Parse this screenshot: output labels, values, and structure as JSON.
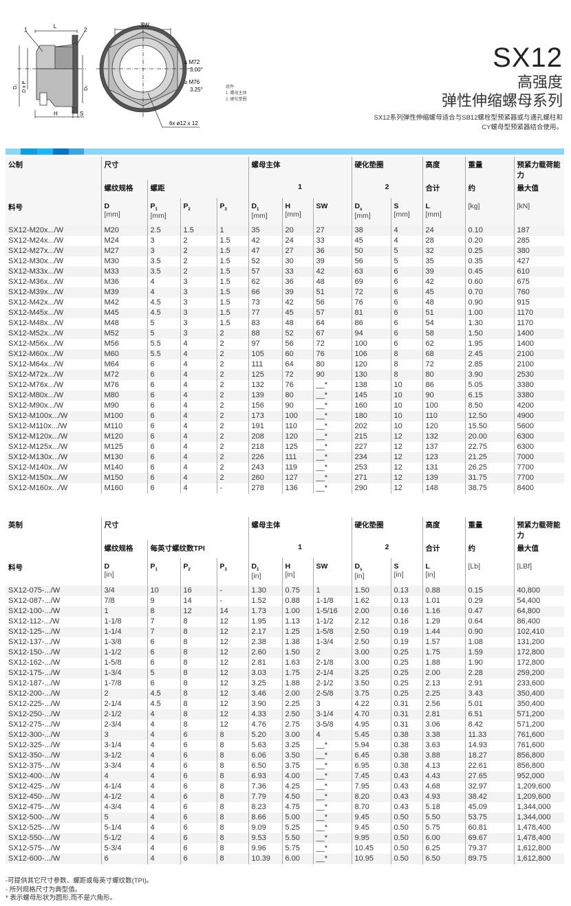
{
  "header": {
    "model": "SX12",
    "subtitle1": "高强度",
    "subtitle2": "弹性伸缩螺母系列",
    "description_line1": "SX12系列弹性伸缩螺母适合与SB12螺栓型预紧器或与通孔螺柱和",
    "description_line2": "CY螺母型预紧器结合使用。"
  },
  "drawing": {
    "label_L": "L",
    "label_1": "1",
    "label_2": "2",
    "label_SW": "SW",
    "label_D1": "D₁",
    "label_DxP": "D x P",
    "label_Ds": "Dₛ",
    "label_H": "H",
    "label_S": "S",
    "angle1_range": "≤ M72",
    "angle1": "3.00°",
    "angle2_range": "≥ M76",
    "angle2": "3.25°",
    "holes": "6x  ø12 x 12",
    "legend_title": "组件:",
    "legend_1": "1. 螺母主体",
    "legend_2": "2. 硬化垫圈"
  },
  "colors": {
    "strip": "#8dd6f5",
    "seg1": "#0aa0e0",
    "seg2": "#13bbee",
    "seg3": "#0077c0",
    "seg4": "#3aa6dc"
  },
  "metric": {
    "h_system": "公制",
    "h_size": "尺寸",
    "h_body": "螺母主体",
    "h_washer": "硬化垫圈",
    "h_height": "高度",
    "h_weight": "重量",
    "h_load": "预紧力载荷能力",
    "h_thread": "螺纹规格",
    "h_pitch": "螺距",
    "h_body_no": "1",
    "h_washer_no": "2",
    "h_total": "合计",
    "h_approx": "约",
    "h_max": "最大值",
    "h_part": "料号",
    "units": {
      "D": "[mm]",
      "P1": "[mm]",
      "D1": "[mm]",
      "H": "[mm]",
      "Ds": "[mm]",
      "S": "[mm]",
      "L": "[mm]",
      "weight": "[kg]",
      "load": "[kN]"
    },
    "rows": [
      [
        "SX12-M20x.../W",
        "M20",
        "2.5",
        "1.5",
        "1",
        "35",
        "20",
        "27",
        "38",
        "4",
        "24",
        "0.10",
        "187"
      ],
      [
        "SX12-M24x.../W",
        "M24",
        "3",
        "2",
        "1.5",
        "42",
        "24",
        "33",
        "45",
        "4",
        "28",
        "0.20",
        "285"
      ],
      [
        "SX12-M27x.../W",
        "M27",
        "3",
        "2",
        "1.5",
        "47",
        "27",
        "36",
        "50",
        "5",
        "32",
        "0.25",
        "380"
      ],
      [
        "SX12-M30x.../W",
        "M30",
        "3.5",
        "2",
        "1.5",
        "52",
        "30",
        "39",
        "56",
        "5",
        "35",
        "0.35",
        "427"
      ],
      [
        "SX12-M33x.../W",
        "M33",
        "3.5",
        "2",
        "1.5",
        "57",
        "33",
        "42",
        "63",
        "6",
        "39",
        "0.45",
        "610"
      ],
      [
        "SX12-M36x.../W",
        "M36",
        "4",
        "3",
        "1.5",
        "62",
        "36",
        "48",
        "69",
        "6",
        "42",
        "0.60",
        "675"
      ],
      [
        "SX12-M39x.../W",
        "M39",
        "4",
        "3",
        "1.5",
        "66",
        "39",
        "51",
        "72",
        "6",
        "45",
        "0.70",
        "760"
      ],
      [
        "SX12-M42x.../W",
        "M42",
        "4.5",
        "3",
        "1.5",
        "73",
        "42",
        "56",
        "76",
        "6",
        "48",
        "0.90",
        "915"
      ],
      [
        "SX12-M45x.../W",
        "M45",
        "4.5",
        "3",
        "1.5",
        "77",
        "45",
        "57",
        "81",
        "6",
        "51",
        "1.00",
        "1170"
      ],
      [
        "SX12-M48x.../W",
        "M48",
        "5",
        "3",
        "1.5",
        "83",
        "48",
        "64",
        "86",
        "6",
        "54",
        "1.30",
        "1170"
      ],
      [
        "SX12-M52x.../W",
        "M52",
        "5",
        "3",
        "2",
        "88",
        "52",
        "67",
        "94",
        "6",
        "58",
        "1.50",
        "1400"
      ],
      [
        "SX12-M56x.../W",
        "M56",
        "5.5",
        "4",
        "2",
        "97",
        "56",
        "72",
        "100",
        "6",
        "62",
        "1.95",
        "1400"
      ],
      [
        "SX12-M60x.../W",
        "M60",
        "5.5",
        "4",
        "2",
        "105",
        "60",
        "76",
        "106",
        "8",
        "68",
        "2.45",
        "2100"
      ],
      [
        "SX12-M64x.../W",
        "M64",
        "6",
        "4",
        "2",
        "111",
        "64",
        "80",
        "120",
        "8",
        "72",
        "2.85",
        "2100"
      ],
      [
        "SX12-M72x.../W",
        "M72",
        "6",
        "4",
        "2",
        "125",
        "72",
        "90",
        "130",
        "8",
        "80",
        "3.90",
        "2530"
      ],
      [
        "SX12-M76x.../W",
        "M76",
        "6",
        "4",
        "2",
        "132",
        "76",
        "__*",
        "138",
        "10",
        "86",
        "5.05",
        "3380"
      ],
      [
        "SX12-M80x.../W",
        "M80",
        "6",
        "4",
        "2",
        "139",
        "80",
        "__*",
        "145",
        "10",
        "90",
        "6.15",
        "3380"
      ],
      [
        "SX12-M90x.../W",
        "M90",
        "6",
        "4",
        "2",
        "156",
        "90",
        "__*",
        "160",
        "10",
        "100",
        "8.50",
        "4200"
      ],
      [
        "SX12-M100x.../W",
        "M100",
        "6",
        "4",
        "2",
        "173",
        "100",
        "__*",
        "180",
        "10",
        "110",
        "12.50",
        "4900"
      ],
      [
        "SX12-M110x.../W",
        "M110",
        "6",
        "4",
        "2",
        "191",
        "110",
        "__*",
        "202",
        "10",
        "120",
        "15.50",
        "5600"
      ],
      [
        "SX12-M120x.../W",
        "M120",
        "6",
        "4",
        "2",
        "208",
        "120",
        "__*",
        "215",
        "12",
        "132",
        "20.00",
        "6300"
      ],
      [
        "SX12-M125x.../W",
        "M125",
        "6",
        "4",
        "2",
        "218",
        "125",
        "__*",
        "227",
        "12",
        "137",
        "22.75",
        "6300"
      ],
      [
        "SX12-M130x.../W",
        "M130",
        "6",
        "4",
        "2",
        "226",
        "111",
        "__*",
        "234",
        "12",
        "123",
        "21.25",
        "7000"
      ],
      [
        "SX12-M140x.../W",
        "M140",
        "6",
        "4",
        "2",
        "243",
        "119",
        "__*",
        "253",
        "12",
        "131",
        "26.25",
        "7700"
      ],
      [
        "SX12-M150x.../W",
        "M150",
        "6",
        "4",
        "2",
        "260",
        "127",
        "__*",
        "271",
        "12",
        "139",
        "31.75",
        "7700"
      ],
      [
        "SX12-M160x.../W",
        "M160",
        "6",
        "4",
        "-",
        "278",
        "136",
        "__*",
        "290",
        "12",
        "148",
        "38.75",
        "8400"
      ]
    ]
  },
  "imperial": {
    "h_system": "英制",
    "h_size": "尺寸",
    "h_body": "螺母主体",
    "h_washer": "硬化垫圈",
    "h_height": "高度",
    "h_weight": "重量",
    "h_load": "预紧力载荷能力",
    "h_thread": "螺纹规格",
    "h_pitch": "每英寸螺纹数TPI",
    "h_body_no": "1",
    "h_washer_no": "2",
    "h_total": "合计",
    "h_approx": "约",
    "h_max": "最大值",
    "h_part": "料号",
    "units": {
      "D": "[in]",
      "P1": "",
      "D1": "[in]",
      "H": "[in]",
      "Ds": "[in]",
      "S": "[in]",
      "L": "[in]",
      "weight": "[Lb]",
      "load": "[LBf]"
    },
    "rows": [
      [
        "SX12-075-.../W",
        "3/4",
        "10",
        "16",
        "-",
        "1.30",
        "0.75",
        "1",
        "1.50",
        "0.13",
        "0.88",
        "0.15",
        "40,800"
      ],
      [
        "SX12-087-.../W",
        "7/8",
        "9",
        "14",
        "-",
        "1.52",
        "0.88",
        "1-1/8",
        "1.62",
        "0.13",
        "1.01",
        "0.29",
        "54,400"
      ],
      [
        "SX12-100-.../W",
        "1",
        "8",
        "12",
        "14",
        "1.73",
        "1.00",
        "1-5/16",
        "2.00",
        "0.16",
        "1.16",
        "0.47",
        "64,800"
      ],
      [
        "SX12-112-.../W",
        "1-1/8",
        "7",
        "8",
        "12",
        "1.95",
        "1.13",
        "1-1/2",
        "2.12",
        "0.16",
        "1.29",
        "0.64",
        "86,400"
      ],
      [
        "SX12-125-.../W",
        "1-1/4",
        "7",
        "8",
        "12",
        "2.17",
        "1.25",
        "1-5/8",
        "2.50",
        "0.19",
        "1.44",
        "0.90",
        "102,410"
      ],
      [
        "SX12-137-.../W",
        "1-3/8",
        "6",
        "8",
        "12",
        "2.38",
        "1.38",
        "1-3/4",
        "2.50",
        "0.19",
        "1.57",
        "1.08",
        "131,200"
      ],
      [
        "SX12-150-.../W",
        "1-1/2",
        "6",
        "8",
        "12",
        "2.60",
        "1.50",
        "2",
        "3.00",
        "0.25",
        "1.75",
        "1.59",
        "172,800"
      ],
      [
        "SX12-162-.../W",
        "1-5/8",
        "6",
        "8",
        "12",
        "2.81",
        "1.63",
        "2-1/8",
        "3.00",
        "0.25",
        "1.88",
        "1.90",
        "172,800"
      ],
      [
        "SX12-175-.../W",
        "1-3/4",
        "5",
        "8",
        "12",
        "3.03",
        "1.75",
        "2-1/4",
        "3.25",
        "0.25",
        "2.00",
        "2.28",
        "259,200"
      ],
      [
        "SX12-187-.../W",
        "1-7/8",
        "6",
        "8",
        "12",
        "3.25",
        "1.88",
        "2-1/2",
        "3.50",
        "0.25",
        "2.13",
        "2.91",
        "233,600"
      ],
      [
        "SX12-200-.../W",
        "2",
        "4.5",
        "8",
        "12",
        "3.46",
        "2.00",
        "2-5/8",
        "3.75",
        "0.25",
        "2.25",
        "3.43",
        "350,400"
      ],
      [
        "SX12-225-.../W",
        "2-1/4",
        "4.5",
        "8",
        "12",
        "3.90",
        "2.25",
        "3",
        "4.22",
        "0.31",
        "2.56",
        "5.01",
        "350,400"
      ],
      [
        "SX12-250-.../W",
        "2-1/2",
        "4",
        "8",
        "12",
        "4.33",
        "2.50",
        "3-1/4",
        "4.70",
        "0.31",
        "2.81",
        "6.51",
        "571,200"
      ],
      [
        "SX12-275-.../W",
        "2-3/4",
        "4",
        "8",
        "12",
        "4.76",
        "2.75",
        "3-5/8",
        "4.95",
        "0.31",
        "3.06",
        "8.42",
        "571,200"
      ],
      [
        "SX12-300-.../W",
        "3",
        "4",
        "6",
        "8",
        "5.20",
        "3.00",
        "4",
        "5.45",
        "0.38",
        "3.38",
        "11.33",
        "761,600"
      ],
      [
        "SX12-325-.../W",
        "3-1/4",
        "4",
        "6",
        "8",
        "5.63",
        "3.25",
        "__*",
        "5.94",
        "0.38",
        "3.63",
        "14.93",
        "761,600"
      ],
      [
        "SX12-350-.../W",
        "3-1/2",
        "4",
        "6",
        "8",
        "6.06",
        "3.50",
        "__*",
        "6.45",
        "0.38",
        "3.88",
        "18.27",
        "856,800"
      ],
      [
        "SX12-375-.../W",
        "3-3/4",
        "4",
        "6",
        "8",
        "6.50",
        "3.75",
        "__*",
        "6.95",
        "0.38",
        "4.13",
        "22.61",
        "856,800"
      ],
      [
        "SX12-400-.../W",
        "4",
        "4",
        "6",
        "8",
        "6.93",
        "4.00",
        "__*",
        "7.45",
        "0.43",
        "4.43",
        "27.65",
        "952,000"
      ],
      [
        "SX12-425-.../W",
        "4-1/4",
        "4",
        "6",
        "8",
        "7.36",
        "4.25",
        "__*",
        "7.95",
        "0.43",
        "4.68",
        "32.97",
        "1,209,600"
      ],
      [
        "SX12-450-.../W",
        "4-1/2",
        "4",
        "6",
        "8",
        "7.79",
        "4.50",
        "__*",
        "8.20",
        "0.43",
        "4.93",
        "38.42",
        "1,209,600"
      ],
      [
        "SX12-475-.../W",
        "4-3/4",
        "4",
        "6",
        "8",
        "8.23",
        "4.75",
        "__*",
        "8.70",
        "0.43",
        "5.18",
        "45.09",
        "1,344,000"
      ],
      [
        "SX12-500-.../W",
        "5",
        "4",
        "6",
        "8",
        "8.66",
        "5.00",
        "__*",
        "9.45",
        "0.50",
        "5.50",
        "53.75",
        "1,344,000"
      ],
      [
        "SX12-525-.../W",
        "5-1/4",
        "4",
        "6",
        "8",
        "9.09",
        "5.25",
        "__*",
        "9.45",
        "0.50",
        "5.75",
        "60.81",
        "1,478,400"
      ],
      [
        "SX12-550-.../W",
        "5-1/2",
        "4",
        "6",
        "8",
        "9.53",
        "5.50",
        "__*",
        "9.95",
        "0.50",
        "6.00",
        "69.67",
        "1,478,400"
      ],
      [
        "SX12-575-.../W",
        "5-3/4",
        "4",
        "6",
        "8",
        "9.96",
        "5.75",
        "__*",
        "10.45",
        "0.50",
        "6.25",
        "79.37",
        "1,612,800"
      ],
      [
        "SX12-600-.../W",
        "6",
        "4",
        "6",
        "8",
        "10.39",
        "6.00",
        "__*",
        "10.95",
        "0.50",
        "6.50",
        "89.75",
        "1,612,800"
      ]
    ]
  },
  "notes": [
    "-可提供其它尺寸参数、螺距或每英寸螺纹数(TPI)。",
    "- 所列规格尺寸为典型值。",
    "* 表示螺母形状为圆形,而不是六角形。"
  ]
}
